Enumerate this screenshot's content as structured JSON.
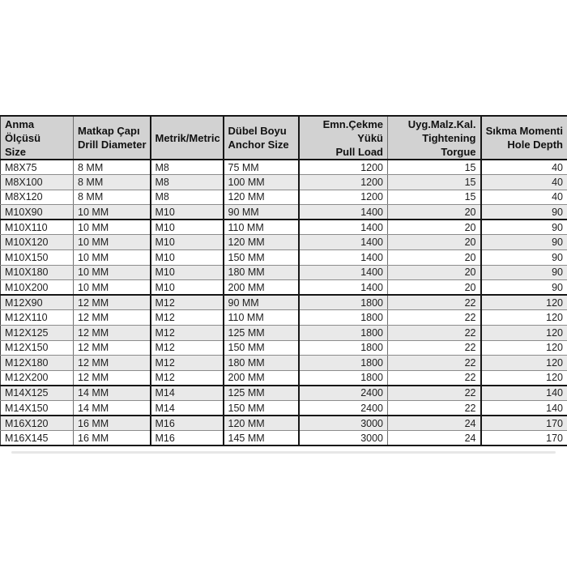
{
  "colors": {
    "header_bg": "#d2d2d2",
    "alt_row_bg": "#e9e9e9",
    "border_dark": "#161616",
    "page_bg": "#ffffff"
  },
  "table": {
    "columns": [
      {
        "key": "size",
        "lines": [
          "Anma Ölçüsü",
          "Size"
        ]
      },
      {
        "key": "drill-diameter",
        "lines": [
          "Matkap Çapı",
          "Drill Diameter"
        ]
      },
      {
        "key": "metric",
        "lines": [
          "Metrik/Metric"
        ]
      },
      {
        "key": "anchor-size",
        "lines": [
          "Dübel Boyu",
          "Anchor Size"
        ]
      },
      {
        "key": "pull-load",
        "lines": [
          "Emn.Çekme Yükü",
          "Pull Load"
        ]
      },
      {
        "key": "tightening-torgue",
        "lines": [
          "Uyg.Malz.Kal.",
          "Tightening Torgue"
        ]
      },
      {
        "key": "hole-depth",
        "lines": [
          "Sıkma Momenti",
          "Hole Depth"
        ]
      }
    ],
    "rows": [
      [
        "M8X75",
        "8 MM",
        "M8",
        "75 MM",
        "1200",
        "15",
        "40"
      ],
      [
        "M8X100",
        "8 MM",
        "M8",
        "100 MM",
        "1200",
        "15",
        "40"
      ],
      [
        "M8X120",
        "8 MM",
        "M8",
        "120 MM",
        "1200",
        "15",
        "40"
      ],
      [
        "M10X90",
        "10 MM",
        "M10",
        "90 MM",
        "1400",
        "20",
        "90"
      ],
      [
        "M10X110",
        "10 MM",
        "M10",
        "110 MM",
        "1400",
        "20",
        "90"
      ],
      [
        "M10X120",
        "10 MM",
        "M10",
        "120 MM",
        "1400",
        "20",
        "90"
      ],
      [
        "M10X150",
        "10 MM",
        "M10",
        "150 MM",
        "1400",
        "20",
        "90"
      ],
      [
        "M10X180",
        "10 MM",
        "M10",
        "180 MM",
        "1400",
        "20",
        "90"
      ],
      [
        "M10X200",
        "10 MM",
        "M10",
        "200 MM",
        "1400",
        "20",
        "90"
      ],
      [
        "M12X90",
        "12 MM",
        "M12",
        "90 MM",
        "1800",
        "22",
        "120"
      ],
      [
        "M12X110",
        "12 MM",
        "M12",
        "110 MM",
        "1800",
        "22",
        "120"
      ],
      [
        "M12X125",
        "12 MM",
        "M12",
        "125 MM",
        "1800",
        "22",
        "120"
      ],
      [
        "M12X150",
        "12 MM",
        "M12",
        "150 MM",
        "1800",
        "22",
        "120"
      ],
      [
        "M12X180",
        "12 MM",
        "M12",
        "180 MM",
        "1800",
        "22",
        "120"
      ],
      [
        "M12X200",
        "12 MM",
        "M12",
        "200 MM",
        "1800",
        "22",
        "120"
      ],
      [
        "M14X125",
        "14 MM",
        "M14",
        "125 MM",
        "2400",
        "22",
        "140"
      ],
      [
        "M14X150",
        "14 MM",
        "M14",
        "150 MM",
        "2400",
        "22",
        "140"
      ],
      [
        "M16X120",
        "16 MM",
        "M16",
        "120 MM",
        "3000",
        "24",
        "170"
      ],
      [
        "M16X145",
        "16 MM",
        "M16",
        "145 MM",
        "3000",
        "24",
        "170"
      ]
    ],
    "thick_separator_after_rows": [
      3,
      8,
      14,
      16
    ]
  }
}
